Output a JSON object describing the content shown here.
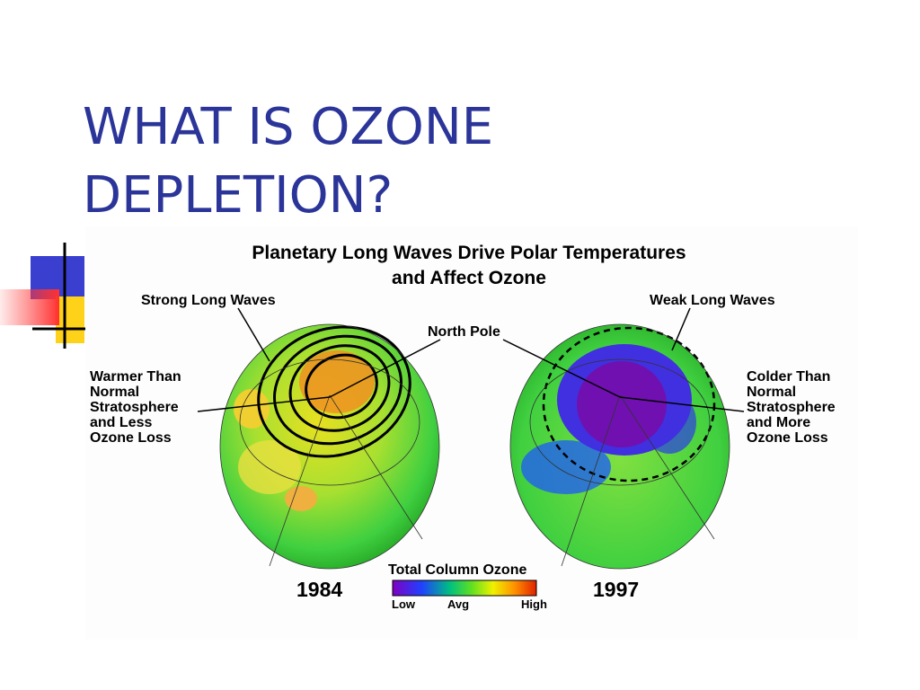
{
  "slide": {
    "title_lines": [
      "WHAT IS OZONE",
      "DEPLETION?"
    ],
    "figure": {
      "title_lines": [
        "Planetary Long Waves Drive Polar Temperatures",
        "and Affect Ozone"
      ],
      "left_callout": "Strong Long Waves",
      "right_callout": "Weak Long Waves",
      "center_callout": "North Pole",
      "left_note_lines": [
        "Warmer Than",
        "Normal",
        "Stratosphere",
        "and Less",
        "Ozone Loss"
      ],
      "right_note_lines": [
        "Colder Than",
        "Normal",
        "Stratosphere",
        "and More",
        "Ozone Loss"
      ],
      "left_year": "1984",
      "right_year": "1997",
      "legend": {
        "title": "Total Column Ozone",
        "low": "Low",
        "avg": "Avg",
        "high": "High"
      }
    }
  }
}
